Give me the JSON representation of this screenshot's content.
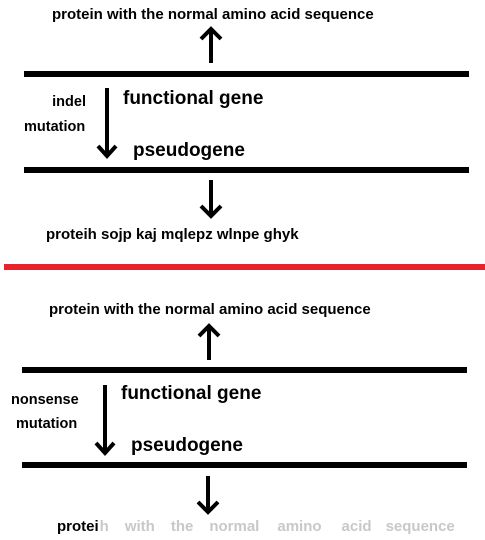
{
  "colors": {
    "divider": "#e8232b",
    "ink": "#000000",
    "faded_text": "#c8c8c8"
  },
  "top_panel": {
    "protein_normal": "protein with the normal amino acid sequence",
    "mutation_line1": "indel",
    "mutation_line2": "mutation",
    "functional_gene": "functional  gene",
    "pseudogene": "pseudogene",
    "protein_result": "proteih sojp kaj mqlepz wlnpe ghyk"
  },
  "bottom_panel": {
    "protein_normal": "protein with the normal amino acid sequence",
    "mutation_line1": "nonsense",
    "mutation_line2": "mutation",
    "functional_gene": "functional  gene",
    "pseudogene": "pseudogene",
    "protein_result_kept": "protei",
    "protein_result_lost": [
      "h",
      "with",
      "the",
      "normal",
      "amino",
      "acid",
      "sequence"
    ]
  }
}
